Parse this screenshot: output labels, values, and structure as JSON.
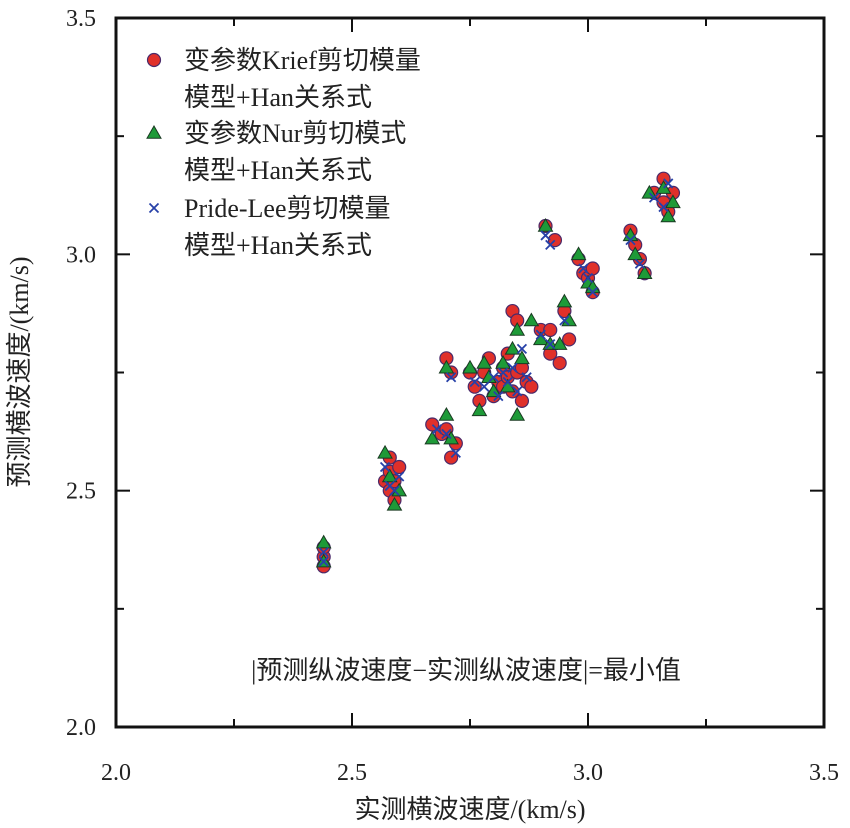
{
  "chart_data": {
    "type": "scatter",
    "xlabel": "实测横波速度/(km/s)",
    "ylabel": "预测横波速度/(km/s)",
    "xlim": [
      2.0,
      3.5
    ],
    "ylim": [
      2.0,
      3.5
    ],
    "x_ticks": [
      "2.0",
      "2.5",
      "3.0",
      "3.5"
    ],
    "y_ticks": [
      "2.0",
      "2.5",
      "3.0",
      "3.5"
    ],
    "grid": false,
    "legend_position": "top-left",
    "annotation": "|预测纵波速度−实测纵波速度|=最小值",
    "series": [
      {
        "legend_line1": "变参数Krief剪切模量",
        "legend_line2": "模型+Han关系式",
        "marker": "circle",
        "color": "#e0302a",
        "points": [
          [
            2.44,
            2.34
          ],
          [
            2.44,
            2.36
          ],
          [
            2.44,
            2.38
          ],
          [
            2.57,
            2.52
          ],
          [
            2.58,
            2.5
          ],
          [
            2.58,
            2.54
          ],
          [
            2.59,
            2.48
          ],
          [
            2.59,
            2.52
          ],
          [
            2.6,
            2.55
          ],
          [
            2.58,
            2.57
          ],
          [
            2.67,
            2.64
          ],
          [
            2.69,
            2.62
          ],
          [
            2.7,
            2.63
          ],
          [
            2.7,
            2.78
          ],
          [
            2.71,
            2.75
          ],
          [
            2.71,
            2.57
          ],
          [
            2.72,
            2.6
          ],
          [
            2.75,
            2.75
          ],
          [
            2.76,
            2.72
          ],
          [
            2.77,
            2.69
          ],
          [
            2.78,
            2.75
          ],
          [
            2.79,
            2.78
          ],
          [
            2.8,
            2.7
          ],
          [
            2.81,
            2.73
          ],
          [
            2.82,
            2.76
          ],
          [
            2.82,
            2.72
          ],
          [
            2.83,
            2.74
          ],
          [
            2.83,
            2.79
          ],
          [
            2.84,
            2.88
          ],
          [
            2.84,
            2.71
          ],
          [
            2.85,
            2.75
          ],
          [
            2.85,
            2.86
          ],
          [
            2.86,
            2.76
          ],
          [
            2.86,
            2.69
          ],
          [
            2.87,
            2.73
          ],
          [
            2.88,
            2.72
          ],
          [
            2.9,
            2.84
          ],
          [
            2.91,
            3.06
          ],
          [
            2.92,
            2.84
          ],
          [
            2.92,
            2.79
          ],
          [
            2.93,
            3.03
          ],
          [
            2.94,
            2.77
          ],
          [
            2.95,
            2.88
          ],
          [
            2.96,
            2.82
          ],
          [
            2.98,
            2.99
          ],
          [
            2.99,
            2.96
          ],
          [
            3.0,
            2.95
          ],
          [
            3.01,
            2.92
          ],
          [
            3.01,
            2.97
          ],
          [
            3.09,
            3.05
          ],
          [
            3.1,
            3.02
          ],
          [
            3.11,
            2.99
          ],
          [
            3.12,
            2.96
          ],
          [
            3.14,
            3.13
          ],
          [
            3.16,
            3.11
          ],
          [
            3.16,
            3.16
          ],
          [
            3.17,
            3.09
          ],
          [
            3.18,
            3.13
          ]
        ]
      },
      {
        "legend_line1": "变参数Nur剪切模式",
        "legend_line2": "模型+Han关系式",
        "marker": "triangle",
        "color": "#1e9a38",
        "points": [
          [
            2.44,
            2.39
          ],
          [
            2.44,
            2.35
          ],
          [
            2.57,
            2.58
          ],
          [
            2.58,
            2.53
          ],
          [
            2.59,
            2.47
          ],
          [
            2.6,
            2.5
          ],
          [
            2.67,
            2.61
          ],
          [
            2.7,
            2.66
          ],
          [
            2.71,
            2.61
          ],
          [
            2.7,
            2.76
          ],
          [
            2.75,
            2.76
          ],
          [
            2.77,
            2.67
          ],
          [
            2.78,
            2.77
          ],
          [
            2.79,
            2.74
          ],
          [
            2.8,
            2.71
          ],
          [
            2.82,
            2.77
          ],
          [
            2.83,
            2.72
          ],
          [
            2.84,
            2.8
          ],
          [
            2.85,
            2.66
          ],
          [
            2.85,
            2.84
          ],
          [
            2.86,
            2.78
          ],
          [
            2.88,
            2.86
          ],
          [
            2.9,
            2.82
          ],
          [
            2.91,
            3.06
          ],
          [
            2.92,
            2.81
          ],
          [
            2.94,
            2.81
          ],
          [
            2.95,
            2.9
          ],
          [
            2.96,
            2.86
          ],
          [
            2.98,
            3.0
          ],
          [
            3.0,
            2.94
          ],
          [
            3.01,
            2.93
          ],
          [
            3.09,
            3.04
          ],
          [
            3.1,
            3.0
          ],
          [
            3.12,
            2.96
          ],
          [
            3.13,
            3.13
          ],
          [
            3.16,
            3.14
          ],
          [
            3.17,
            3.08
          ],
          [
            3.18,
            3.11
          ]
        ]
      },
      {
        "legend_line1": "Pride-Lee剪切模量",
        "legend_line2": "模型+Han关系式",
        "marker": "x",
        "color": "#2741a8",
        "points": [
          [
            2.44,
            2.35
          ],
          [
            2.44,
            2.37
          ],
          [
            2.57,
            2.55
          ],
          [
            2.58,
            2.51
          ],
          [
            2.59,
            2.5
          ],
          [
            2.6,
            2.53
          ],
          [
            2.68,
            2.63
          ],
          [
            2.7,
            2.62
          ],
          [
            2.71,
            2.74
          ],
          [
            2.72,
            2.58
          ],
          [
            2.76,
            2.73
          ],
          [
            2.78,
            2.72
          ],
          [
            2.8,
            2.74
          ],
          [
            2.81,
            2.7
          ],
          [
            2.82,
            2.75
          ],
          [
            2.83,
            2.73
          ],
          [
            2.84,
            2.76
          ],
          [
            2.85,
            2.71
          ],
          [
            2.86,
            2.8
          ],
          [
            2.87,
            2.74
          ],
          [
            2.9,
            2.83
          ],
          [
            2.91,
            3.04
          ],
          [
            2.92,
            3.02
          ],
          [
            2.92,
            2.81
          ],
          [
            2.95,
            2.86
          ],
          [
            2.99,
            2.97
          ],
          [
            3.0,
            2.95
          ],
          [
            3.01,
            2.92
          ],
          [
            3.09,
            3.03
          ],
          [
            3.11,
            2.98
          ],
          [
            3.14,
            3.12
          ],
          [
            3.16,
            3.1
          ],
          [
            3.17,
            3.15
          ]
        ]
      }
    ]
  }
}
